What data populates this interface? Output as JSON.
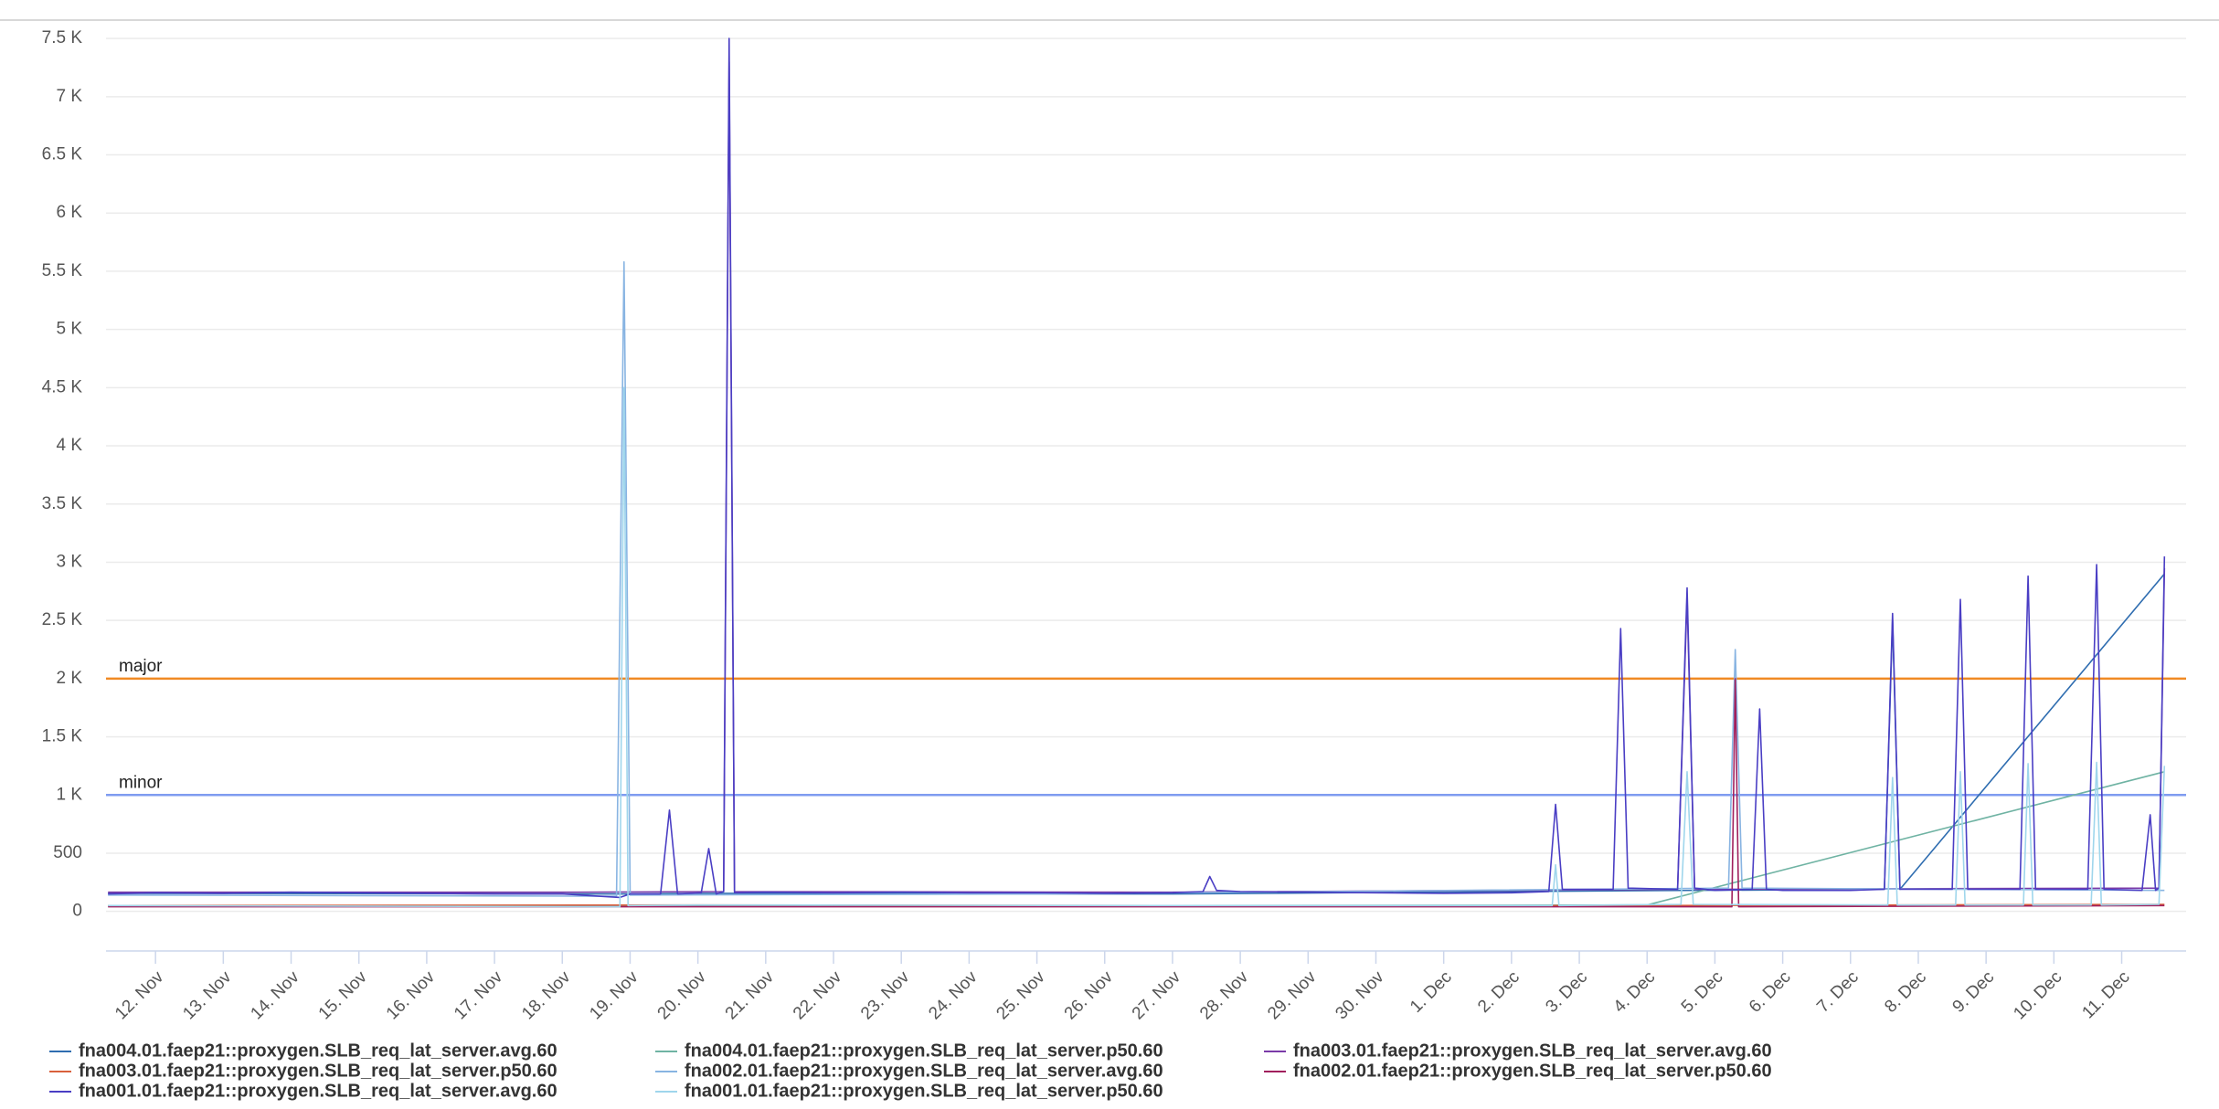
{
  "chart_data": {
    "type": "line",
    "grid": true,
    "xlim": [
      11.27,
      41.95
    ],
    "ylim": [
      -340,
      7650
    ],
    "xticks": [
      {
        "value": 12,
        "label": "12. Nov"
      },
      {
        "value": 13,
        "label": "13. Nov"
      },
      {
        "value": 14,
        "label": "14. Nov"
      },
      {
        "value": 15,
        "label": "15. Nov"
      },
      {
        "value": 16,
        "label": "16. Nov"
      },
      {
        "value": 17,
        "label": "17. Nov"
      },
      {
        "value": 18,
        "label": "18. Nov"
      },
      {
        "value": 19,
        "label": "19. Nov"
      },
      {
        "value": 20,
        "label": "20. Nov"
      },
      {
        "value": 21,
        "label": "21. Nov"
      },
      {
        "value": 22,
        "label": "22. Nov"
      },
      {
        "value": 23,
        "label": "23. Nov"
      },
      {
        "value": 24,
        "label": "24. Nov"
      },
      {
        "value": 25,
        "label": "25. Nov"
      },
      {
        "value": 26,
        "label": "26. Nov"
      },
      {
        "value": 27,
        "label": "27. Nov"
      },
      {
        "value": 28,
        "label": "28. Nov"
      },
      {
        "value": 29,
        "label": "29. Nov"
      },
      {
        "value": 30,
        "label": "30. Nov"
      },
      {
        "value": 31,
        "label": "1. Dec"
      },
      {
        "value": 32,
        "label": "2. Dec"
      },
      {
        "value": 33,
        "label": "3. Dec"
      },
      {
        "value": 34,
        "label": "4. Dec"
      },
      {
        "value": 35,
        "label": "5. Dec"
      },
      {
        "value": 36,
        "label": "6. Dec"
      },
      {
        "value": 37,
        "label": "7. Dec"
      },
      {
        "value": 38,
        "label": "8. Dec"
      },
      {
        "value": 39,
        "label": "9. Dec"
      },
      {
        "value": 40,
        "label": "10. Dec"
      },
      {
        "value": 41,
        "label": "11. Dec"
      }
    ],
    "yticks": [
      0,
      500,
      {
        "value": 1000,
        "label": "1 K"
      },
      {
        "value": 1500,
        "label": "1.5 K"
      },
      {
        "value": 2000,
        "label": "2 K"
      },
      {
        "value": 2500,
        "label": "2.5 K"
      },
      {
        "value": 3000,
        "label": "3 K"
      },
      {
        "value": 3500,
        "label": "3.5 K"
      },
      {
        "value": 4000,
        "label": "4 K"
      },
      {
        "value": 4500,
        "label": "4.5 K"
      },
      {
        "value": 5000,
        "label": "5 K"
      },
      {
        "value": 5500,
        "label": "5.5 K"
      },
      {
        "value": 6000,
        "label": "6 K"
      },
      {
        "value": 6500,
        "label": "6.5 K"
      },
      {
        "value": 7000,
        "label": "7 K"
      },
      {
        "value": 7500,
        "label": "7.5 K"
      }
    ],
    "thresholds": [
      {
        "label": "major",
        "value": 2000,
        "color": "#f08a24"
      },
      {
        "label": "minor",
        "value": 1000,
        "color": "#7f9cf0"
      }
    ],
    "series": [
      {
        "name": "fna004.01.faep21::proxygen.SLB_req_lat_server.avg.60",
        "color": "#2f6db0",
        "x": [
          11.3,
          19,
          20,
          27,
          33,
          37.5,
          37.62,
          37.73,
          41.63
        ],
        "values": [
          155,
          150,
          155,
          150,
          175,
          190,
          2500,
          190,
          2900
        ]
      },
      {
        "name": "fna004.01.faep21::proxygen.SLB_req_lat_server.p50.60",
        "color": "#6fb3a3",
        "x": [
          11.3,
          20,
          27,
          34,
          41.63
        ],
        "values": [
          45,
          50,
          50,
          55,
          1200
        ]
      },
      {
        "name": "fna003.01.faep21::proxygen.SLB_req_lat_server.avg.60",
        "color": "#7a3aa8",
        "x": [
          11.3,
          18,
          20.38,
          20.46,
          20.54,
          27,
          34.45,
          34.59,
          34.7,
          41.55,
          41.63
        ],
        "values": [
          165,
          165,
          170,
          7300,
          170,
          165,
          190,
          2700,
          190,
          200,
          2950
        ]
      },
      {
        "name": "fna003.01.faep21::proxygen.SLB_req_lat_server.p50.60",
        "color": "#d9603b",
        "x": [
          11.3,
          20,
          27,
          34,
          41.63
        ],
        "values": [
          50,
          55,
          50,
          50,
          60
        ]
      },
      {
        "name": "fna002.01.faep21::proxygen.SLB_req_lat_server.avg.60",
        "color": "#88b4e2",
        "x": [
          11.3,
          18.8,
          18.91,
          19.0,
          25,
          35.2,
          35.3,
          35.4,
          41.63
        ],
        "values": [
          140,
          130,
          5580,
          140,
          150,
          200,
          2250,
          200,
          180
        ]
      },
      {
        "name": "fna002.01.faep21::proxygen.SLB_req_lat_server.p50.60",
        "color": "#a11f5c",
        "x": [
          11.3,
          35.25,
          35.3,
          35.35,
          41.63
        ],
        "values": [
          40,
          40,
          2000,
          40,
          50
        ]
      },
      {
        "name": "fna001.01.faep21::proxygen.SLB_req_lat_server.avg.60",
        "color": "#4a3ec4",
        "x": [
          11.3,
          12,
          13,
          14,
          15,
          16,
          17,
          18,
          18.85,
          19,
          19.45,
          19.58,
          19.7,
          20.05,
          20.16,
          20.27,
          20.38,
          20.46,
          20.54,
          21,
          22,
          23,
          24,
          25,
          26,
          27,
          27.45,
          27.55,
          27.65,
          28,
          29,
          30,
          31,
          32,
          32.55,
          32.65,
          32.75,
          33.5,
          33.61,
          33.72,
          34.45,
          34.59,
          34.7,
          35,
          35.55,
          35.66,
          35.76,
          36,
          37,
          37.5,
          37.62,
          37.73,
          38.5,
          38.62,
          38.73,
          39.5,
          39.62,
          39.73,
          40.5,
          40.63,
          40.74,
          41.3,
          41.42,
          41.5,
          41.55,
          41.63
        ],
        "values": [
          150,
          160,
          155,
          165,
          160,
          155,
          150,
          150,
          120,
          150,
          150,
          870,
          150,
          160,
          540,
          150,
          170,
          7500,
          160,
          165,
          160,
          165,
          160,
          160,
          155,
          160,
          170,
          300,
          180,
          170,
          165,
          160,
          155,
          160,
          170,
          920,
          190,
          190,
          2430,
          200,
          190,
          2780,
          200,
          180,
          190,
          1740,
          190,
          180,
          180,
          190,
          2560,
          190,
          190,
          2680,
          190,
          190,
          2880,
          190,
          190,
          2980,
          190,
          180,
          830,
          180,
          200,
          3050
        ]
      },
      {
        "name": "fna001.01.faep21::proxygen.SLB_req_lat_server.p50.60",
        "color": "#9fd6ec",
        "x": [
          11.3,
          18.85,
          18.91,
          18.97,
          20,
          27,
          32.6,
          32.65,
          32.7,
          34.5,
          34.59,
          34.68,
          37.55,
          37.62,
          37.69,
          38.55,
          38.62,
          38.69,
          39.55,
          39.62,
          39.69,
          40.55,
          40.63,
          40.7,
          41.55,
          41.63
        ],
        "values": [
          50,
          40,
          4500,
          50,
          55,
          50,
          50,
          400,
          50,
          60,
          1200,
          60,
          55,
          1150,
          55,
          55,
          1200,
          55,
          55,
          1270,
          55,
          55,
          1280,
          55,
          60,
          1250
        ]
      }
    ]
  }
}
